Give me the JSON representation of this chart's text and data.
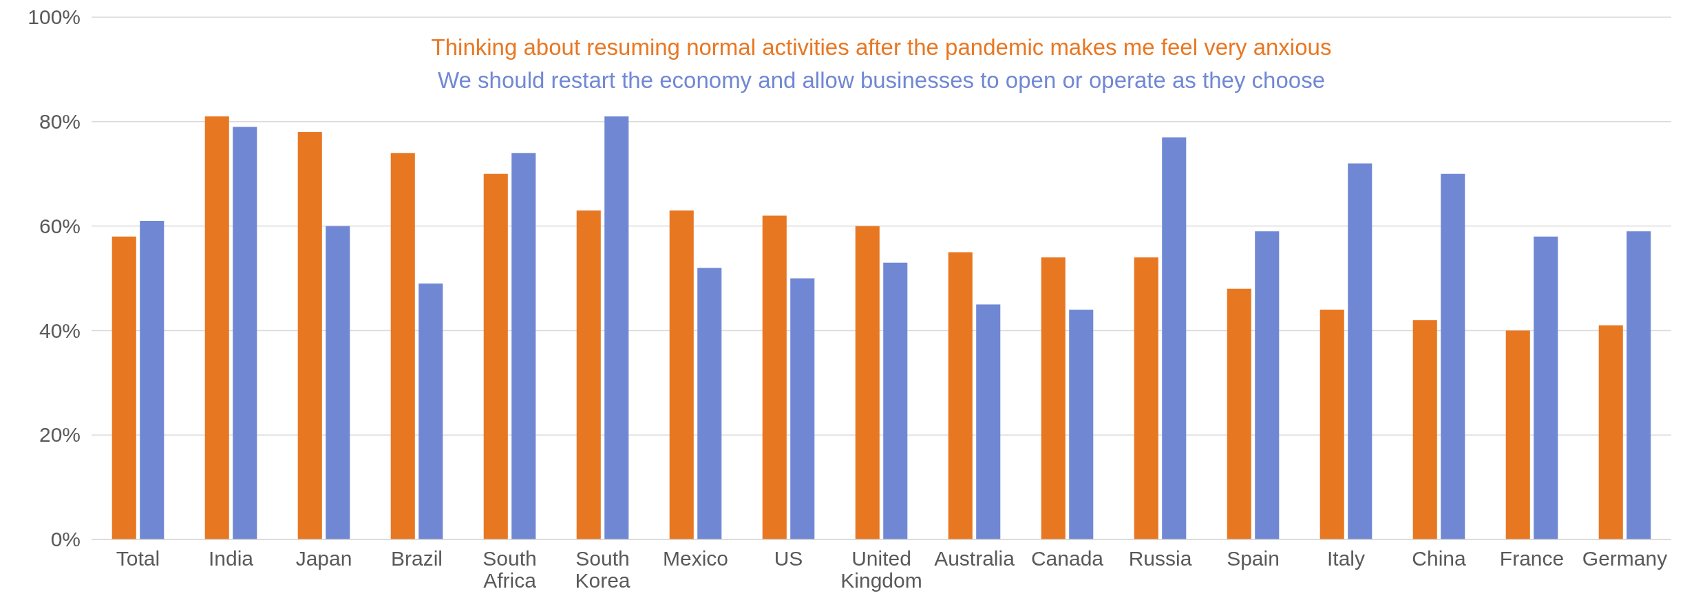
{
  "chart_data": {
    "type": "bar",
    "categories": [
      "Total",
      "India",
      "Japan",
      "Brazil",
      "South Africa",
      "South Korea",
      "Mexico",
      "US",
      "United Kingdom",
      "Australia",
      "Canada",
      "Russia",
      "Spain",
      "Italy",
      "China",
      "France",
      "Germany"
    ],
    "series": [
      {
        "name": "Thinking about resuming normal activities after the pandemic makes me feel very anxious",
        "color": "#e87722",
        "values": [
          58,
          81,
          78,
          74,
          70,
          63,
          63,
          62,
          60,
          55,
          54,
          54,
          48,
          44,
          42,
          40,
          41
        ]
      },
      {
        "name": "We should restart the economy and allow businesses to open or operate as they choose",
        "color": "#7088d4",
        "values": [
          61,
          79,
          60,
          49,
          74,
          81,
          52,
          50,
          53,
          45,
          44,
          77,
          59,
          72,
          70,
          58,
          59
        ]
      }
    ],
    "ylim": [
      0,
      100
    ],
    "yticks": [
      {
        "value": 0,
        "label": "0%"
      },
      {
        "value": 20,
        "label": "20%"
      },
      {
        "value": 40,
        "label": "40%"
      },
      {
        "value": 60,
        "label": "60%"
      },
      {
        "value": 80,
        "label": "80%"
      },
      {
        "value": 100,
        "label": "100%"
      }
    ],
    "grid": "y",
    "legend": "top"
  }
}
